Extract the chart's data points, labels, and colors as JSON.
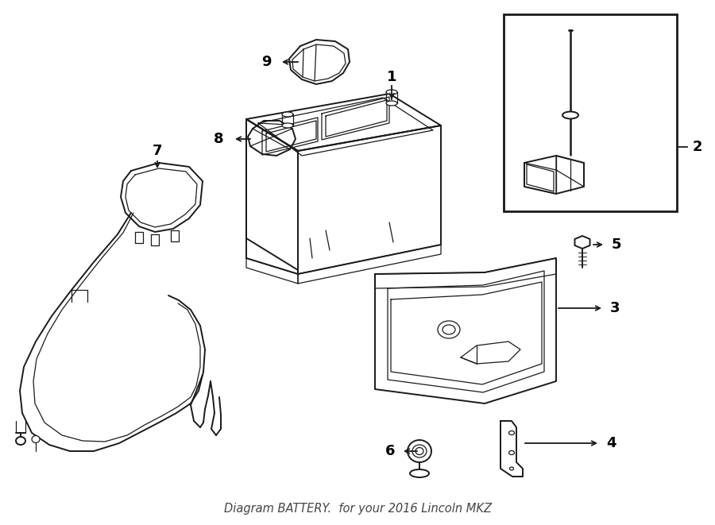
{
  "bg_color": "#ffffff",
  "line_color": "#1a1a1a",
  "figsize": [
    9.0,
    6.61
  ],
  "dpi": 100,
  "title_text": "Diagram BATTERY.  for your 2016 Lincoln MKZ"
}
